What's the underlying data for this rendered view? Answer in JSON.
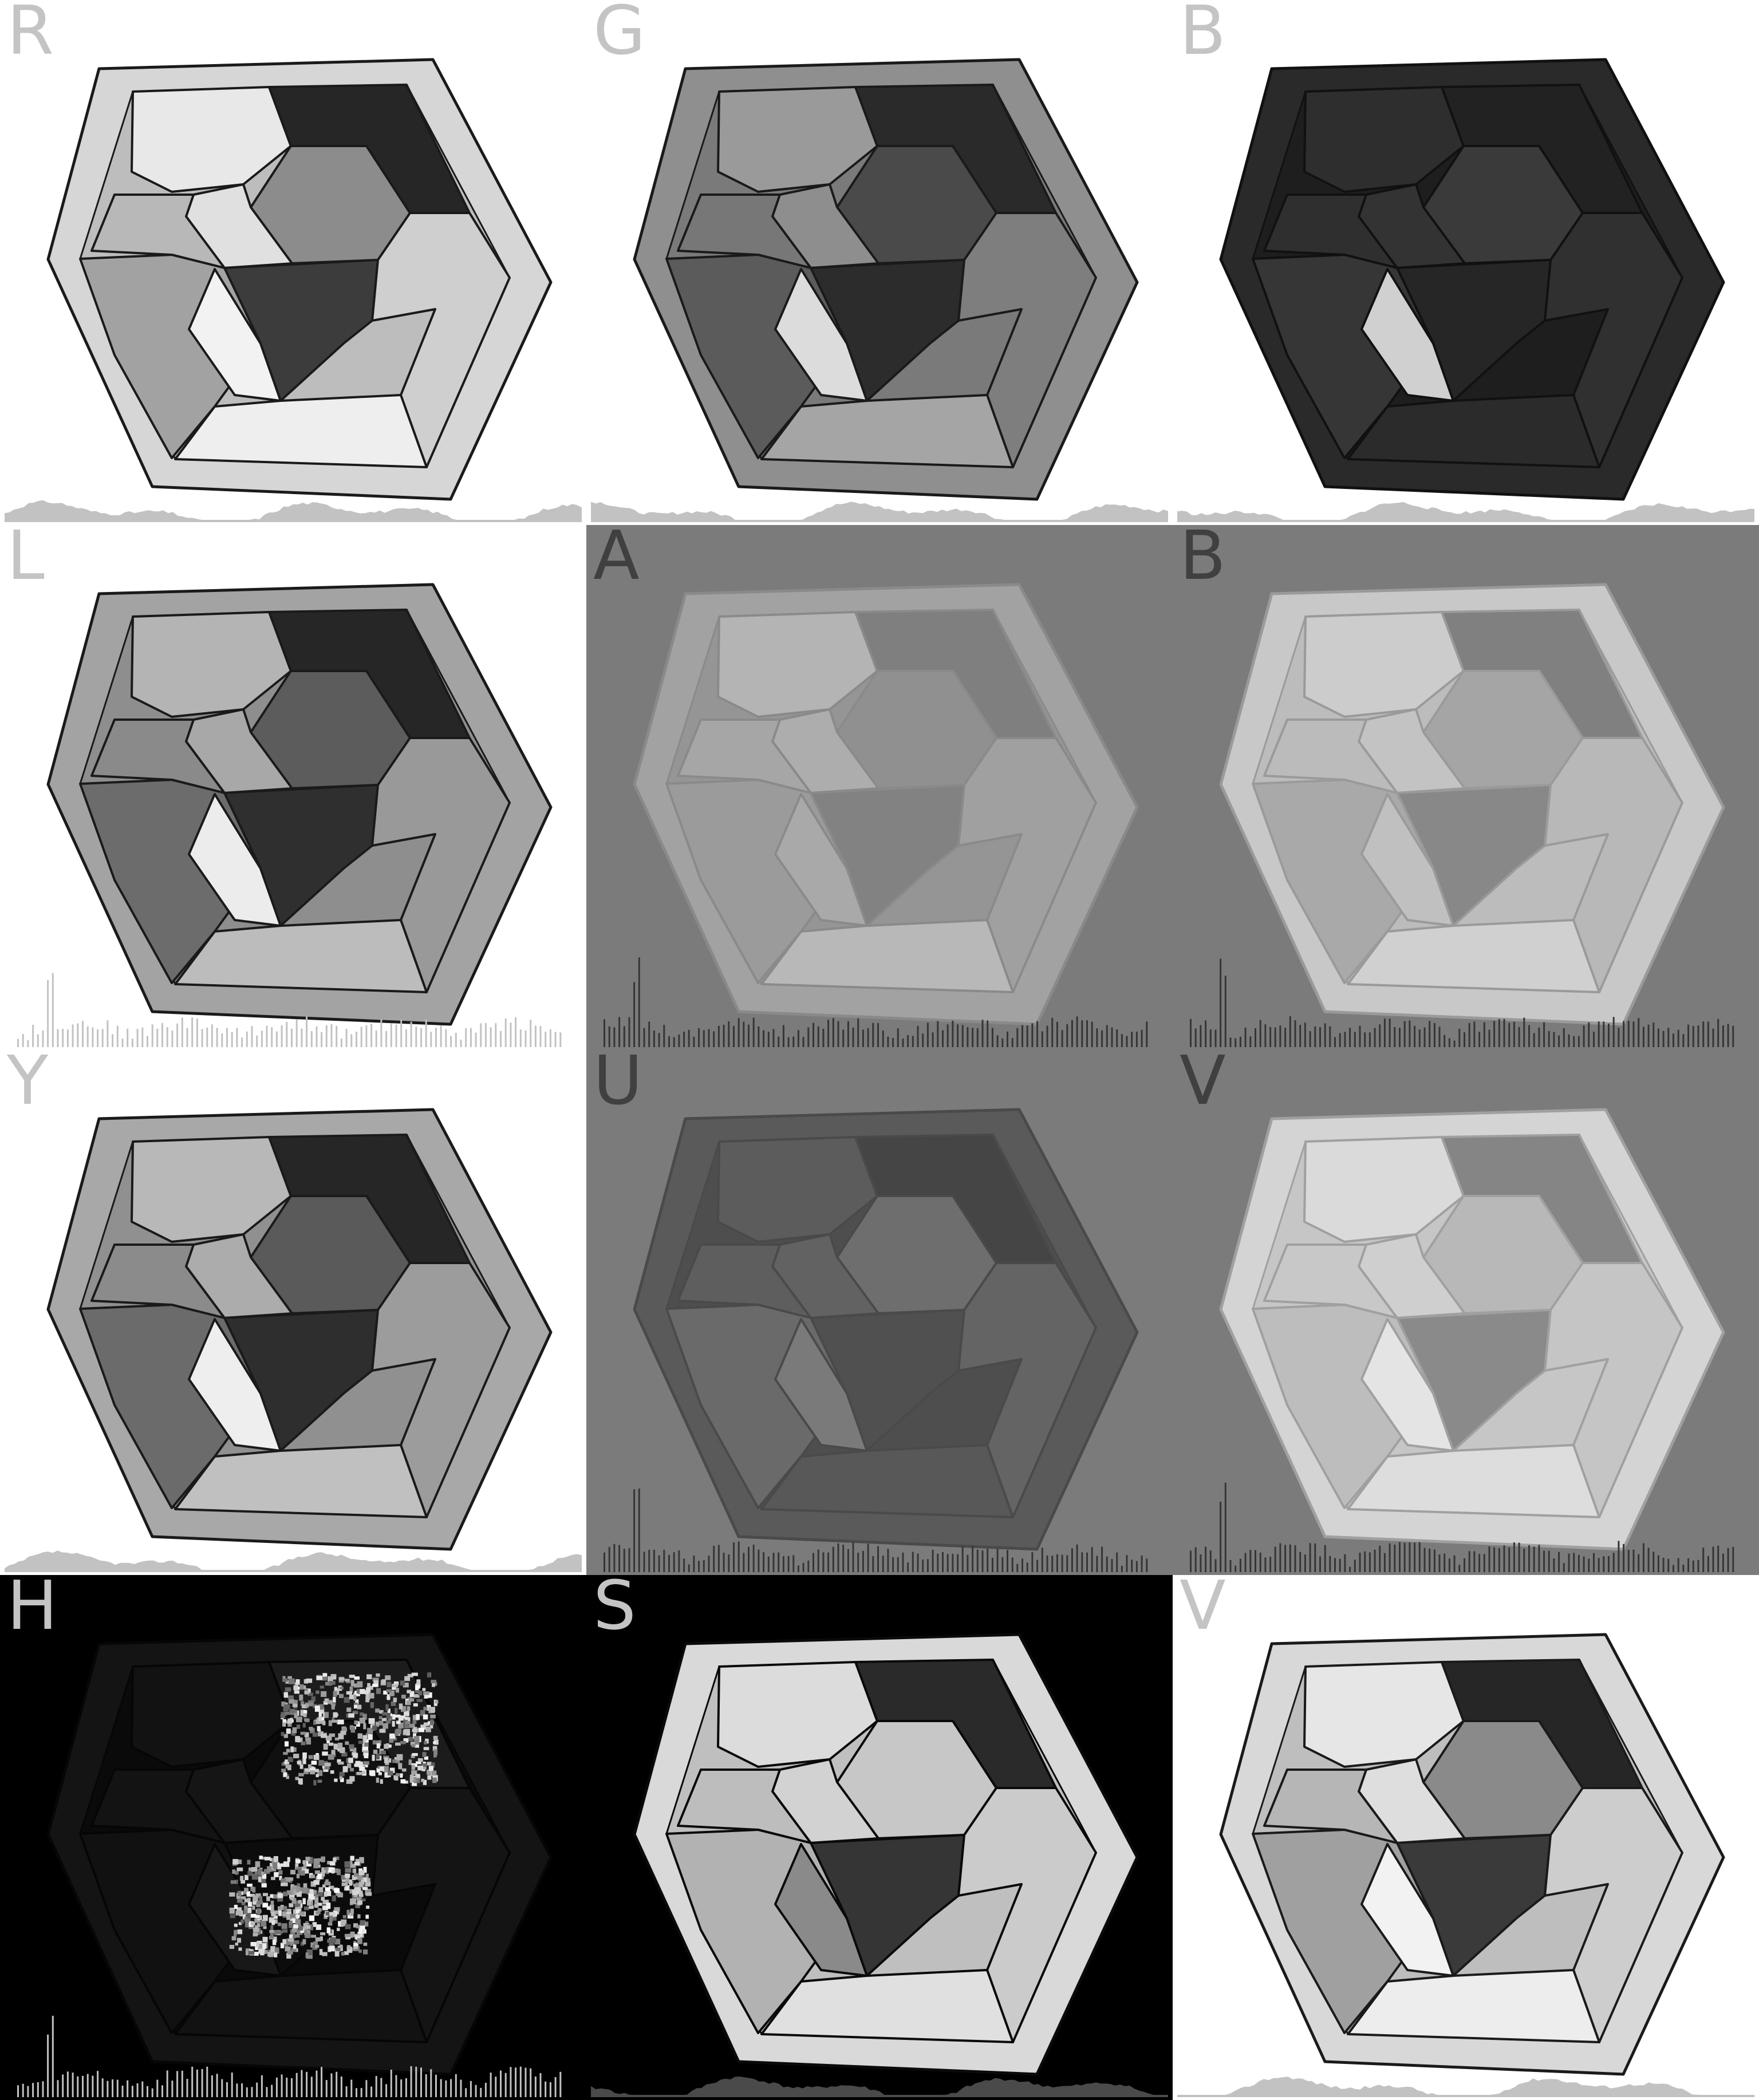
{
  "layout": {
    "columns": 3,
    "rows": 4
  },
  "panels": [
    {
      "label": "R",
      "label_color": "#c4c4c4",
      "background": "#ffffff",
      "tones": {
        "frame": "#d6d6d6",
        "rim": "#bdbdbd",
        "p1": "#e8e8e8",
        "p2": "#262626",
        "p3": "#8c8c8c",
        "p4": "#e0e0e0",
        "p5": "#b8b8b8",
        "p6": "#3c3c3c",
        "p7": "#a2a2a2",
        "p8": "#cfcfcf",
        "p9": "#eeeeee",
        "p10": "#f2f2f2",
        "outline": "#1a1a1a"
      },
      "histogram": {
        "style": "area",
        "color": "#c2c2c2"
      }
    },
    {
      "label": "G",
      "label_color": "#c4c4c4",
      "background": "#ffffff",
      "tones": {
        "frame": "#8f8f8f",
        "rim": "#7a7a7a",
        "p1": "#9a9a9a",
        "p2": "#2a2a2a",
        "p3": "#4a4a4a",
        "p4": "#8e8e8e",
        "p5": "#777777",
        "p6": "#2c2c2c",
        "p7": "#5b5b5b",
        "p8": "#7e7e7e",
        "p9": "#a5a5a5",
        "p10": "#dcdcdc",
        "outline": "#1a1a1a"
      },
      "histogram": {
        "style": "area",
        "color": "#c2c2c2"
      }
    },
    {
      "label": "B",
      "label_color": "#c4c4c4",
      "background": "#ffffff",
      "tones": {
        "frame": "#2a2a2a",
        "rim": "#1e1e1e",
        "p1": "#2e2e2e",
        "p2": "#222222",
        "p3": "#3a3a3a",
        "p4": "#333333",
        "p5": "#2f2f2f",
        "p6": "#262626",
        "p7": "#363636",
        "p8": "#303030",
        "p9": "#2b2b2b",
        "p10": "#d0d0d0",
        "outline": "#111111"
      },
      "histogram": {
        "style": "area",
        "color": "#c2c2c2"
      }
    },
    {
      "label": "L",
      "label_color": "#c4c4c4",
      "background": "#ffffff",
      "tones": {
        "frame": "#a3a3a3",
        "rim": "#8e8e8e",
        "p1": "#b4b4b4",
        "p2": "#262626",
        "p3": "#5c5c5c",
        "p4": "#a8a8a8",
        "p5": "#8a8a8a",
        "p6": "#2f2f2f",
        "p7": "#6c6c6c",
        "p8": "#999999",
        "p9": "#bcbcbc",
        "p10": "#ececec",
        "outline": "#1a1a1a"
      },
      "histogram": {
        "style": "bars",
        "color": "#c2c2c2"
      }
    },
    {
      "label": "A",
      "label_color": "#404040",
      "background": "#7b7b7b",
      "tones": {
        "frame": "#a2a2a2",
        "rim": "#959595",
        "p1": "#b4b4b4",
        "p2": "#7f7f7f",
        "p3": "#909090",
        "p4": "#adadad",
        "p5": "#a6a6a6",
        "p6": "#828282",
        "p7": "#9b9b9b",
        "p8": "#a0a0a0",
        "p9": "#b8b8b8",
        "p10": "#a9a9a9",
        "outline": "#8a8a8a"
      },
      "histogram": {
        "style": "bars",
        "color": "#363636"
      }
    },
    {
      "label": "B",
      "label_color": "#404040",
      "background": "#7b7b7b",
      "tones": {
        "frame": "#c8c8c8",
        "rim": "#bcbcbc",
        "p1": "#cccccc",
        "p2": "#808080",
        "p3": "#a5a5a5",
        "p4": "#c3c3c3",
        "p5": "#bbbbbb",
        "p6": "#888888",
        "p7": "#a9a9a9",
        "p8": "#b8b8b8",
        "p9": "#d0d0d0",
        "p10": "#c0c0c0",
        "outline": "#9a9a9a"
      },
      "histogram": {
        "style": "bars",
        "color": "#363636"
      }
    },
    {
      "label": "Y",
      "label_color": "#c4c4c4",
      "background": "#ffffff",
      "tones": {
        "frame": "#a8a8a8",
        "rim": "#909090",
        "p1": "#b8b8b8",
        "p2": "#262626",
        "p3": "#5a5a5a",
        "p4": "#acacac",
        "p5": "#8b8b8b",
        "p6": "#2e2e2e",
        "p7": "#6b6b6b",
        "p8": "#9c9c9c",
        "p9": "#c0c0c0",
        "p10": "#eeeeee",
        "outline": "#1a1a1a"
      },
      "histogram": {
        "style": "area",
        "color": "#c2c2c2"
      }
    },
    {
      "label": "U",
      "label_color": "#404040",
      "background": "#7b7b7b",
      "tones": {
        "frame": "#5a5a5a",
        "rim": "#4e4e4e",
        "p1": "#5c5c5c",
        "p2": "#454545",
        "p3": "#6e6e6e",
        "p4": "#626262",
        "p5": "#5e5e5e",
        "p6": "#505050",
        "p7": "#6a6a6a",
        "p8": "#646464",
        "p9": "#585858",
        "p10": "#7a7a7a",
        "outline": "#4a4a4a"
      },
      "histogram": {
        "style": "bars",
        "color": "#363636"
      }
    },
    {
      "label": "V",
      "label_color": "#404040",
      "background": "#7b7b7b",
      "tones": {
        "frame": "#d4d4d4",
        "rim": "#c6c6c6",
        "p1": "#dadada",
        "p2": "#858585",
        "p3": "#b8b8b8",
        "p4": "#cfcfcf",
        "p5": "#c8c8c8",
        "p6": "#8a8a8a",
        "p7": "#bdbdbd",
        "p8": "#c5c5c5",
        "p9": "#dddddd",
        "p10": "#e4e4e4",
        "outline": "#a0a0a0"
      },
      "histogram": {
        "style": "bars",
        "color": "#363636"
      }
    },
    {
      "label": "H",
      "label_color": "#c4c4c4",
      "background": "#000000",
      "tones": {
        "frame": "#141414",
        "rim": "#0a0a0a",
        "p1": "#121212",
        "p2": "#1c1c1c",
        "p3": "#101010",
        "p4": "#151515",
        "p5": "#131313",
        "p6": "#0c0c0c",
        "p7": "#111111",
        "p8": "#141414",
        "p9": "#121212",
        "p10": "#181818",
        "outline": "#060606"
      },
      "speckle": [
        "p2",
        "p6"
      ],
      "histogram": {
        "style": "bars",
        "color": "#c2c2c2"
      }
    },
    {
      "label": "S",
      "label_color": "#c4c4c4",
      "background": "#000000",
      "tones": {
        "frame": "#d9d9d9",
        "rim": "#bfbfbf",
        "p1": "#dcdcdc",
        "p2": "#2a2a2a",
        "p3": "#c7c7c7",
        "p4": "#d2d2d2",
        "p5": "#bdbdbd",
        "p6": "#353535",
        "p7": "#b2b2b2",
        "p8": "#cbcbcb",
        "p9": "#e0e0e0",
        "p10": "#8a8a8a",
        "outline": "#0a0a0a"
      },
      "histogram": {
        "style": "area",
        "color": "#4a4a4a"
      }
    },
    {
      "label": "V",
      "label_color": "#c4c4c4",
      "background": "#ffffff",
      "tones": {
        "frame": "#d8d8d8",
        "rim": "#bebebe",
        "p1": "#e6e6e6",
        "p2": "#262626",
        "p3": "#8a8a8a",
        "p4": "#dedede",
        "p5": "#b6b6b6",
        "p6": "#3a3a3a",
        "p7": "#a0a0a0",
        "p8": "#cdcdcd",
        "p9": "#ededed",
        "p10": "#f2f2f2",
        "outline": "#1a1a1a"
      },
      "histogram": {
        "style": "area",
        "color": "#c2c2c2"
      }
    }
  ]
}
